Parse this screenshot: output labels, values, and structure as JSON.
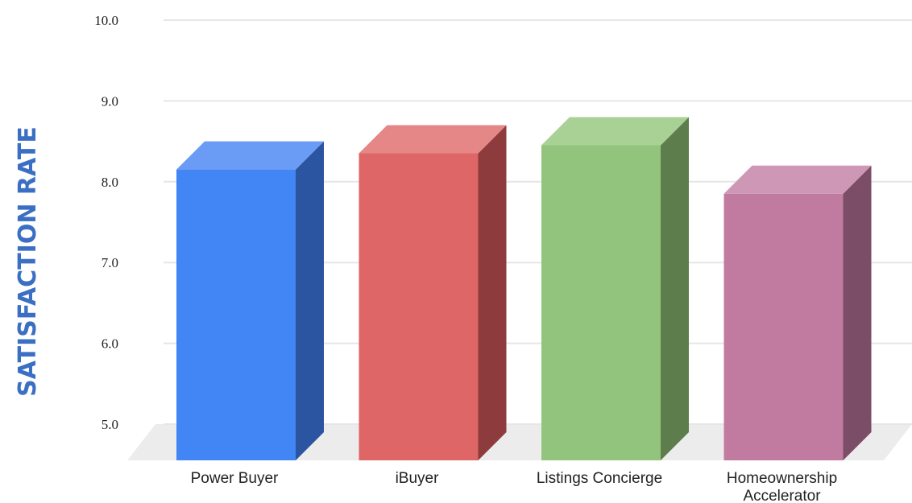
{
  "chart_data": {
    "type": "bar",
    "style": "3d",
    "title": "",
    "xlabel": "",
    "ylabel": "SATISFACTION RATE",
    "ylim": [
      5.0,
      10.0
    ],
    "yticks": [
      "5.0",
      "6.0",
      "7.0",
      "8.0",
      "9.0",
      "10.0"
    ],
    "grid": true,
    "categories": [
      [
        "Power Buyer"
      ],
      [
        "iBuyer"
      ],
      [
        "Listings Concierge"
      ],
      [
        "Homeownership",
        "Accelerator"
      ]
    ],
    "values": [
      8.5,
      8.7,
      8.8,
      8.2
    ],
    "colors": {
      "bars": [
        "#4285f4",
        "#de6666",
        "#93c47d",
        "#c27ba0"
      ],
      "sides": [
        "#2b55a0",
        "#8e3b3d",
        "#5e7d4d",
        "#7c4d66"
      ],
      "tops": [
        "#6b9cf5",
        "#e68787",
        "#aad195",
        "#ce97b5"
      ],
      "ylabel": "#3b6fc4",
      "grid": "#e6e6e6",
      "floor": "#ececec"
    }
  }
}
